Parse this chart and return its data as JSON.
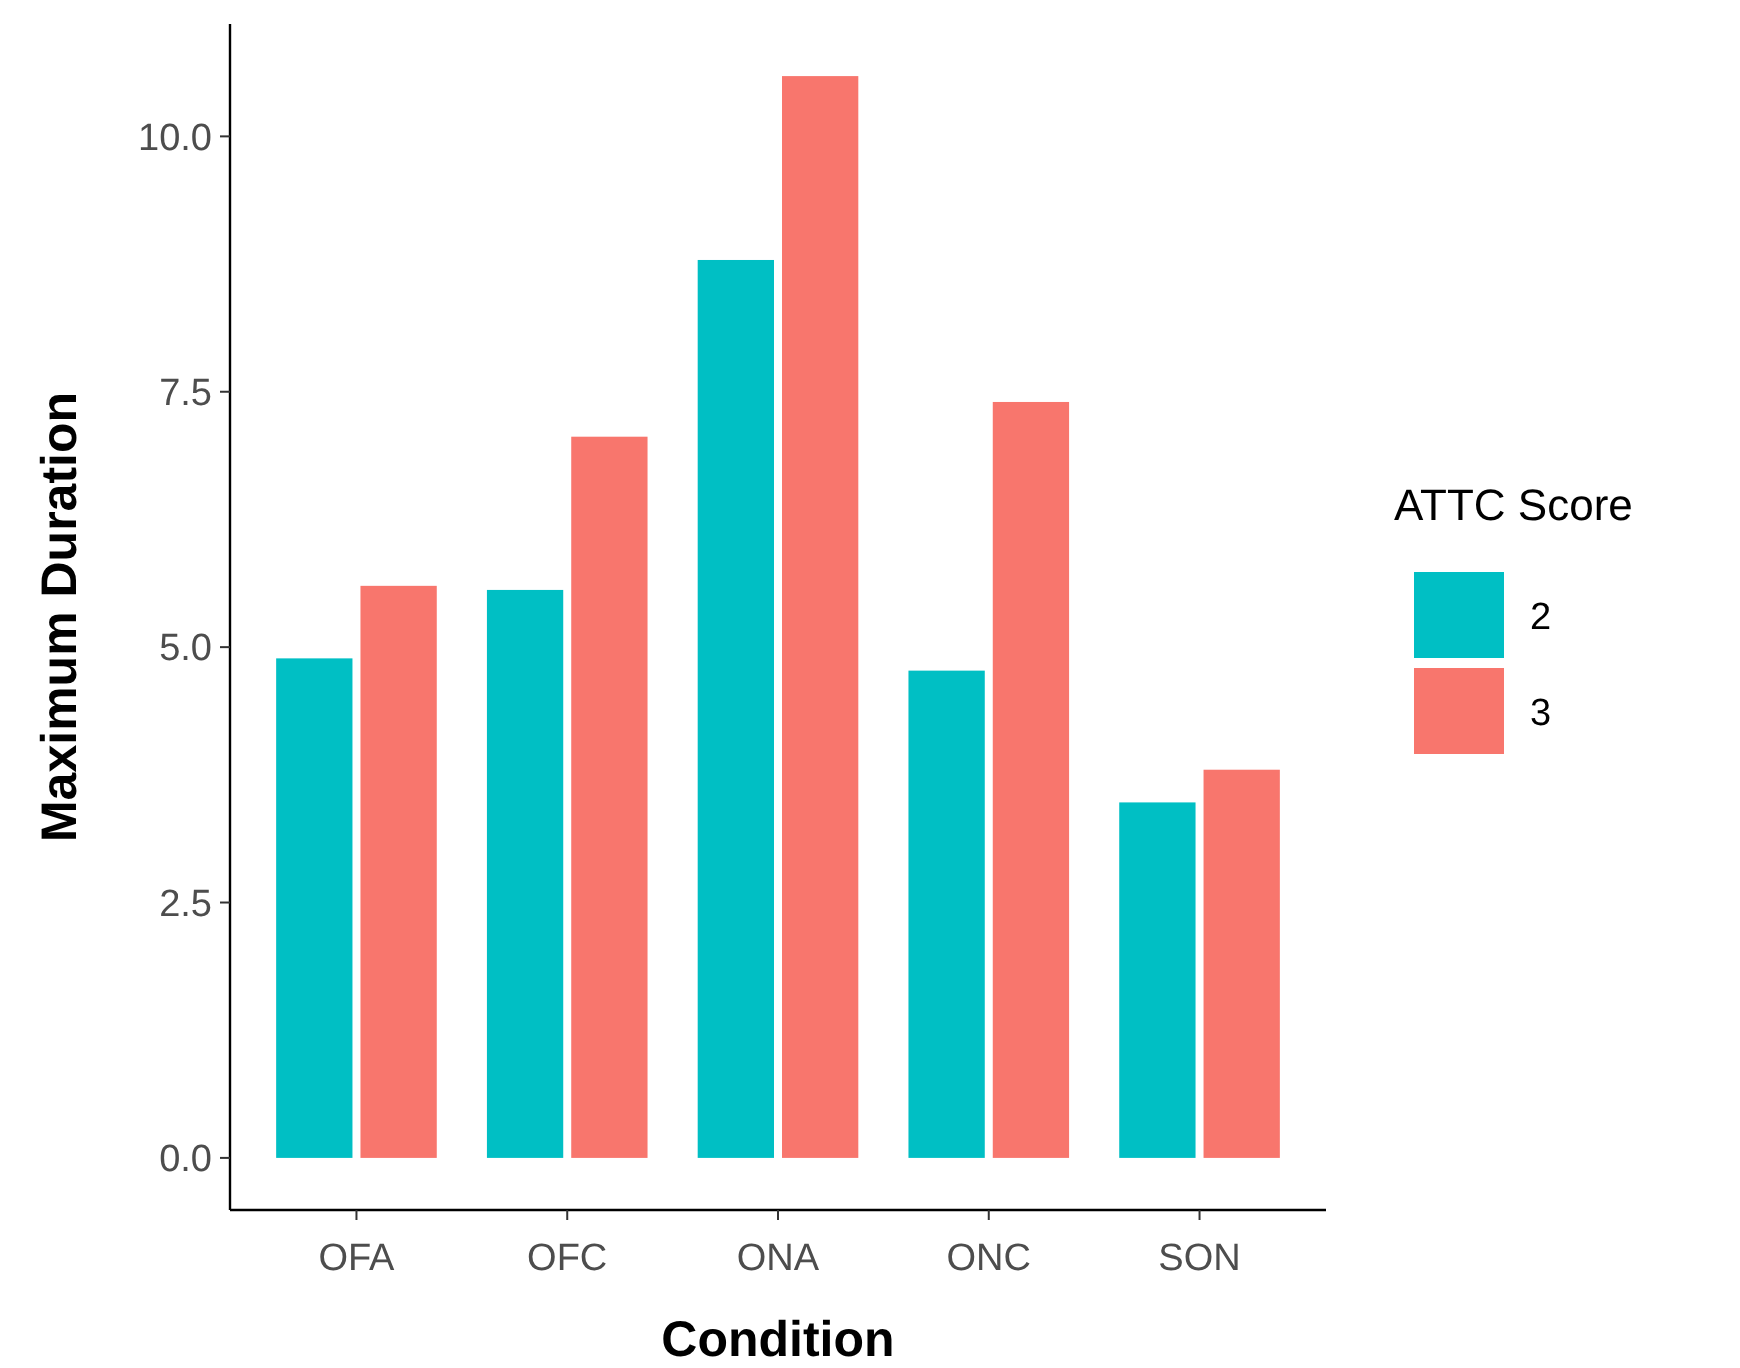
{
  "chart_data": {
    "type": "bar",
    "xlabel": "Condition",
    "ylabel": "Maximum Duration",
    "legend_title": "ATTC Score",
    "legend": "right",
    "grid": false,
    "categories": [
      "OFA",
      "OFC",
      "ONA",
      "ONC",
      "SON"
    ],
    "series": [
      {
        "name": "2",
        "color": "#00bfc4",
        "values": [
          4.89,
          5.56,
          8.79,
          4.77,
          3.48
        ]
      },
      {
        "name": "3",
        "color": "#f8766d",
        "values": [
          5.6,
          7.06,
          10.59,
          7.4,
          3.8
        ]
      }
    ],
    "ylim": [
      -0.51,
      11.1
    ],
    "yticks": [
      {
        "value": 0,
        "label": "0.0"
      },
      {
        "value": 2.5,
        "label": "2.5"
      },
      {
        "value": 5,
        "label": "5.0"
      },
      {
        "value": 7.5,
        "label": "7.5"
      },
      {
        "value": 10,
        "label": "10.0"
      }
    ]
  }
}
